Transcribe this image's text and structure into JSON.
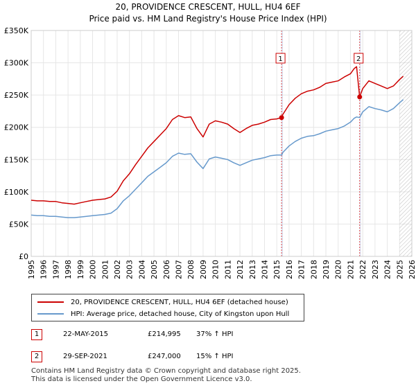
{
  "header": {
    "title_line1": "20, PROVIDENCE CRESCENT, HULL, HU4 6EF",
    "title_line2": "Price paid vs. HM Land Registry's House Price Index (HPI)"
  },
  "colors": {
    "property": "#cc0000",
    "hpi": "#6699cc",
    "shade": "#dde6f5",
    "grid": "#e6e6e6"
  },
  "chart_data": {
    "type": "line",
    "title": "Price paid vs. HM Land Registry's House Price Index (HPI)",
    "xlim": [
      1995,
      2026
    ],
    "ylim": [
      0,
      350000
    ],
    "y_ticks": [
      0,
      50000,
      100000,
      150000,
      200000,
      250000,
      300000,
      350000
    ],
    "y_tick_labels": [
      "£0",
      "£50K",
      "£100K",
      "£150K",
      "£200K",
      "£250K",
      "£300K",
      "£350K"
    ],
    "x_ticks": [
      1995,
      1996,
      1997,
      1998,
      1999,
      2000,
      2001,
      2002,
      2003,
      2004,
      2005,
      2006,
      2007,
      2008,
      2009,
      2010,
      2011,
      2012,
      2013,
      2014,
      2015,
      2016,
      2017,
      2018,
      2019,
      2020,
      2021,
      2022,
      2023,
      2024,
      2025,
      2026
    ],
    "series": [
      {
        "name": "20, PROVIDENCE CRESCENT, HULL, HU4 6EF (detached house)",
        "color": "#cc0000",
        "x": [
          1995.0,
          1995.5,
          1996.0,
          1996.5,
          1997.0,
          1997.5,
          1998.0,
          1998.5,
          1999.0,
          1999.5,
          2000.0,
          2000.5,
          2001.0,
          2001.5,
          2002.0,
          2002.5,
          2003.0,
          2003.5,
          2004.0,
          2004.5,
          2005.0,
          2005.5,
          2006.0,
          2006.5,
          2007.0,
          2007.5,
          2008.0,
          2008.5,
          2009.0,
          2009.5,
          2010.0,
          2010.5,
          2011.0,
          2011.5,
          2012.0,
          2012.5,
          2013.0,
          2013.5,
          2014.0,
          2014.5,
          2015.0,
          2015.39,
          2015.5,
          2016.0,
          2016.5,
          2017.0,
          2017.5,
          2018.0,
          2018.5,
          2019.0,
          2019.5,
          2020.0,
          2020.5,
          2021.0,
          2021.3,
          2021.5,
          2021.75,
          2022.0,
          2022.5,
          2023.0,
          2023.5,
          2024.0,
          2024.5,
          2025.0,
          2025.3
        ],
        "values": [
          87000,
          86000,
          86000,
          85000,
          85000,
          83000,
          82000,
          81000,
          83000,
          85000,
          87000,
          88000,
          89000,
          92000,
          101000,
          117000,
          128000,
          142000,
          155000,
          168000,
          178000,
          188000,
          198000,
          212000,
          218000,
          215000,
          216000,
          198000,
          185000,
          205000,
          210000,
          208000,
          205000,
          198000,
          192000,
          198000,
          203000,
          205000,
          208000,
          212000,
          213000,
          214995,
          220000,
          235000,
          245000,
          252000,
          256000,
          258000,
          262000,
          268000,
          270000,
          272000,
          278000,
          283000,
          291000,
          294000,
          247000,
          260000,
          272000,
          268000,
          264000,
          260000,
          264000,
          274000,
          279000
        ]
      },
      {
        "name": "HPI: Average price, detached house, City of Kingston upon Hull",
        "color": "#6699cc",
        "x": [
          1995.0,
          1995.5,
          1996.0,
          1996.5,
          1997.0,
          1997.5,
          1998.0,
          1998.5,
          1999.0,
          1999.5,
          2000.0,
          2000.5,
          2001.0,
          2001.5,
          2002.0,
          2002.5,
          2003.0,
          2003.5,
          2004.0,
          2004.5,
          2005.0,
          2005.5,
          2006.0,
          2006.5,
          2007.0,
          2007.5,
          2008.0,
          2008.5,
          2009.0,
          2009.5,
          2010.0,
          2010.5,
          2011.0,
          2011.5,
          2012.0,
          2012.5,
          2013.0,
          2013.5,
          2014.0,
          2014.5,
          2015.0,
          2015.39,
          2015.5,
          2016.0,
          2016.5,
          2017.0,
          2017.5,
          2018.0,
          2018.5,
          2019.0,
          2019.5,
          2020.0,
          2020.5,
          2021.0,
          2021.3,
          2021.5,
          2021.75,
          2022.0,
          2022.5,
          2023.0,
          2023.5,
          2024.0,
          2024.5,
          2025.0,
          2025.3
        ],
        "values": [
          64000,
          63000,
          63000,
          62000,
          62000,
          61000,
          60000,
          60000,
          61000,
          62000,
          63000,
          64000,
          65000,
          67000,
          74000,
          86000,
          94000,
          104000,
          114000,
          124000,
          131000,
          138000,
          145000,
          155000,
          160000,
          158000,
          159000,
          146000,
          136000,
          151000,
          154000,
          152000,
          150000,
          145000,
          141000,
          145000,
          149000,
          151000,
          153000,
          156000,
          157000,
          157000,
          161000,
          171000,
          178000,
          183000,
          186000,
          187000,
          190000,
          194000,
          196000,
          198000,
          202000,
          208000,
          214000,
          216000,
          215000,
          224000,
          232000,
          229000,
          227000,
          224000,
          229000,
          238000,
          243000
        ]
      }
    ],
    "markers": [
      {
        "label": "1",
        "x": 2015.39,
        "value": 214995
      },
      {
        "label": "2",
        "x": 2021.75,
        "value": 247000
      }
    ],
    "shaded_regions": [
      [
        2015.39,
        2015.5
      ],
      [
        2021.75,
        2021.85
      ]
    ],
    "hatched_from": 2025.0
  },
  "legend": {
    "property_label": "20, PROVIDENCE CRESCENT, HULL, HU4 6EF (detached house)",
    "hpi_label": "HPI: Average price, detached house, City of Kingston upon Hull"
  },
  "transactions": [
    {
      "badge": "1",
      "date": "22-MAY-2015",
      "price": "£214,995",
      "hpi": "37% ↑ HPI"
    },
    {
      "badge": "2",
      "date": "29-SEP-2021",
      "price": "£247,000",
      "hpi": "15% ↑ HPI"
    }
  ],
  "footer": {
    "line1": "Contains HM Land Registry data © Crown copyright and database right 2025.",
    "line2": "This data is licensed under the Open Government Licence v3.0."
  }
}
